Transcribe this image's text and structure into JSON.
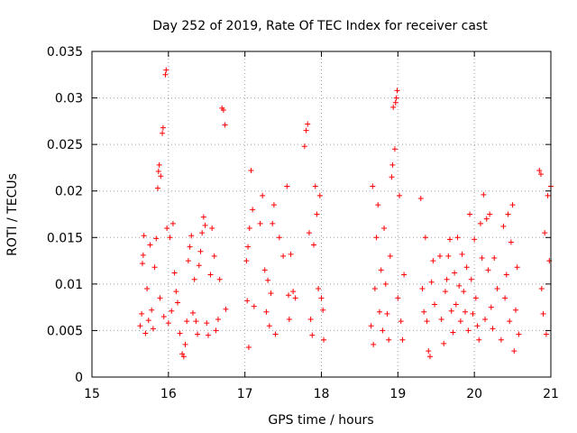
{
  "chart_data": {
    "type": "scatter",
    "title": "Day 252 of 2019, Rate Of TEC Index for receiver cast",
    "xlabel": "GPS time / hours",
    "ylabel": "ROTI / TECUs",
    "xlim": [
      15,
      21
    ],
    "ylim": [
      0,
      0.035
    ],
    "xticks": [
      15,
      16,
      17,
      18,
      19,
      20,
      21
    ],
    "yticks": [
      0,
      0.005,
      0.01,
      0.015,
      0.02,
      0.025,
      0.03,
      0.035
    ],
    "xtick_labels": [
      "15",
      "16",
      "17",
      "18",
      "19",
      "20",
      "21"
    ],
    "ytick_labels": [
      "0",
      "0.005",
      "0.01",
      "0.015",
      "0.02",
      "0.025",
      "0.03",
      "0.035"
    ],
    "grid": true,
    "marker": "+",
    "series_color": "#ff0000",
    "series": [
      {
        "name": "ROTI",
        "points": [
          [
            15.63,
            0.0055
          ],
          [
            15.65,
            0.0068
          ],
          [
            15.66,
            0.0122
          ],
          [
            15.67,
            0.0131
          ],
          [
            15.68,
            0.0152
          ],
          [
            15.7,
            0.0047
          ],
          [
            15.72,
            0.0095
          ],
          [
            15.74,
            0.0061
          ],
          [
            15.76,
            0.0142
          ],
          [
            15.78,
            0.0072
          ],
          [
            15.8,
            0.0052
          ],
          [
            15.82,
            0.0118
          ],
          [
            15.84,
            0.0149
          ],
          [
            15.86,
            0.0203
          ],
          [
            15.87,
            0.0221
          ],
          [
            15.88,
            0.0228
          ],
          [
            15.89,
            0.0085
          ],
          [
            15.9,
            0.0216
          ],
          [
            15.92,
            0.0262
          ],
          [
            15.93,
            0.0268
          ],
          [
            15.94,
            0.0065
          ],
          [
            15.96,
            0.0325
          ],
          [
            15.97,
            0.033
          ],
          [
            15.98,
            0.016
          ],
          [
            16.0,
            0.0058
          ],
          [
            16.02,
            0.015
          ],
          [
            16.04,
            0.0071
          ],
          [
            16.06,
            0.0165
          ],
          [
            16.08,
            0.0112
          ],
          [
            16.1,
            0.0092
          ],
          [
            16.12,
            0.008
          ],
          [
            16.15,
            0.0047
          ],
          [
            16.18,
            0.0025
          ],
          [
            16.2,
            0.0022
          ],
          [
            16.22,
            0.0035
          ],
          [
            16.24,
            0.006
          ],
          [
            16.26,
            0.0125
          ],
          [
            16.28,
            0.014
          ],
          [
            16.3,
            0.0152
          ],
          [
            16.32,
            0.0069
          ],
          [
            16.34,
            0.0105
          ],
          [
            16.36,
            0.006
          ],
          [
            16.38,
            0.0046
          ],
          [
            16.4,
            0.012
          ],
          [
            16.42,
            0.0135
          ],
          [
            16.44,
            0.0155
          ],
          [
            16.46,
            0.0172
          ],
          [
            16.48,
            0.0163
          ],
          [
            16.5,
            0.0058
          ],
          [
            16.52,
            0.0045
          ],
          [
            16.55,
            0.011
          ],
          [
            16.57,
            0.016
          ],
          [
            16.6,
            0.013
          ],
          [
            16.62,
            0.005
          ],
          [
            16.65,
            0.0062
          ],
          [
            16.67,
            0.0105
          ],
          [
            16.7,
            0.0289
          ],
          [
            16.72,
            0.0287
          ],
          [
            16.74,
            0.0271
          ],
          [
            16.75,
            0.0073
          ],
          [
            17.02,
            0.0125
          ],
          [
            17.03,
            0.0082
          ],
          [
            17.04,
            0.014
          ],
          [
            17.05,
            0.0032
          ],
          [
            17.06,
            0.016
          ],
          [
            17.08,
            0.0222
          ],
          [
            17.1,
            0.018
          ],
          [
            17.12,
            0.0076
          ],
          [
            17.2,
            0.0165
          ],
          [
            17.23,
            0.0195
          ],
          [
            17.26,
            0.0115
          ],
          [
            17.28,
            0.007
          ],
          [
            17.3,
            0.0104
          ],
          [
            17.32,
            0.0055
          ],
          [
            17.34,
            0.009
          ],
          [
            17.36,
            0.0165
          ],
          [
            17.38,
            0.0185
          ],
          [
            17.4,
            0.0046
          ],
          [
            17.45,
            0.015
          ],
          [
            17.5,
            0.013
          ],
          [
            17.55,
            0.0205
          ],
          [
            17.57,
            0.0088
          ],
          [
            17.58,
            0.0062
          ],
          [
            17.6,
            0.0132
          ],
          [
            17.63,
            0.0092
          ],
          [
            17.66,
            0.0085
          ],
          [
            17.78,
            0.0248
          ],
          [
            17.8,
            0.0265
          ],
          [
            17.82,
            0.0272
          ],
          [
            17.84,
            0.0155
          ],
          [
            17.86,
            0.0062
          ],
          [
            17.88,
            0.0045
          ],
          [
            17.9,
            0.0142
          ],
          [
            17.92,
            0.0205
          ],
          [
            17.94,
            0.0175
          ],
          [
            17.96,
            0.0095
          ],
          [
            17.98,
            0.0195
          ],
          [
            18.0,
            0.0085
          ],
          [
            18.02,
            0.0072
          ],
          [
            18.03,
            0.004
          ],
          [
            18.65,
            0.0055
          ],
          [
            18.67,
            0.0205
          ],
          [
            18.68,
            0.0035
          ],
          [
            18.7,
            0.0095
          ],
          [
            18.72,
            0.015
          ],
          [
            18.74,
            0.0185
          ],
          [
            18.76,
            0.007
          ],
          [
            18.78,
            0.0115
          ],
          [
            18.8,
            0.005
          ],
          [
            18.82,
            0.016
          ],
          [
            18.84,
            0.01
          ],
          [
            18.86,
            0.0068
          ],
          [
            18.88,
            0.004
          ],
          [
            18.9,
            0.013
          ],
          [
            18.92,
            0.0215
          ],
          [
            18.93,
            0.0228
          ],
          [
            18.94,
            0.029
          ],
          [
            18.96,
            0.0245
          ],
          [
            18.97,
            0.0295
          ],
          [
            18.98,
            0.03
          ],
          [
            18.99,
            0.0308
          ],
          [
            19.0,
            0.0085
          ],
          [
            19.02,
            0.0195
          ],
          [
            19.04,
            0.006
          ],
          [
            19.06,
            0.004
          ],
          [
            19.08,
            0.011
          ],
          [
            19.3,
            0.0192
          ],
          [
            19.32,
            0.0095
          ],
          [
            19.34,
            0.007
          ],
          [
            19.36,
            0.015
          ],
          [
            19.38,
            0.006
          ],
          [
            19.4,
            0.0028
          ],
          [
            19.42,
            0.0022
          ],
          [
            19.44,
            0.0102
          ],
          [
            19.46,
            0.0125
          ],
          [
            19.48,
            0.0078
          ],
          [
            19.55,
            0.013
          ],
          [
            19.57,
            0.0062
          ],
          [
            19.6,
            0.0036
          ],
          [
            19.62,
            0.0092
          ],
          [
            19.64,
            0.0105
          ],
          [
            19.66,
            0.013
          ],
          [
            19.68,
            0.0148
          ],
          [
            19.7,
            0.0071
          ],
          [
            19.72,
            0.0048
          ],
          [
            19.74,
            0.0112
          ],
          [
            19.76,
            0.0078
          ],
          [
            19.78,
            0.015
          ],
          [
            19.8,
            0.0098
          ],
          [
            19.82,
            0.006
          ],
          [
            19.84,
            0.0132
          ],
          [
            19.86,
            0.0092
          ],
          [
            19.88,
            0.007
          ],
          [
            19.9,
            0.0118
          ],
          [
            19.92,
            0.005
          ],
          [
            19.94,
            0.0175
          ],
          [
            19.96,
            0.0105
          ],
          [
            19.98,
            0.0068
          ],
          [
            20.0,
            0.0148
          ],
          [
            20.02,
            0.0085
          ],
          [
            20.04,
            0.0055
          ],
          [
            20.06,
            0.004
          ],
          [
            20.08,
            0.0165
          ],
          [
            20.1,
            0.0128
          ],
          [
            20.12,
            0.0196
          ],
          [
            20.14,
            0.0062
          ],
          [
            20.16,
            0.017
          ],
          [
            20.18,
            0.0115
          ],
          [
            20.2,
            0.0175
          ],
          [
            20.22,
            0.0075
          ],
          [
            20.24,
            0.0052
          ],
          [
            20.26,
            0.0128
          ],
          [
            20.3,
            0.0095
          ],
          [
            20.35,
            0.004
          ],
          [
            20.38,
            0.0162
          ],
          [
            20.4,
            0.0085
          ],
          [
            20.42,
            0.011
          ],
          [
            20.44,
            0.0175
          ],
          [
            20.46,
            0.006
          ],
          [
            20.48,
            0.0145
          ],
          [
            20.5,
            0.0185
          ],
          [
            20.52,
            0.0028
          ],
          [
            20.54,
            0.0072
          ],
          [
            20.56,
            0.0118
          ],
          [
            20.58,
            0.0046
          ],
          [
            20.85,
            0.0222
          ],
          [
            20.87,
            0.0218
          ],
          [
            20.88,
            0.0095
          ],
          [
            20.9,
            0.0068
          ],
          [
            20.92,
            0.0155
          ],
          [
            20.94,
            0.0046
          ],
          [
            20.96,
            0.0195
          ],
          [
            20.98,
            0.0125
          ],
          [
            21.0,
            0.0205
          ]
        ]
      }
    ]
  }
}
